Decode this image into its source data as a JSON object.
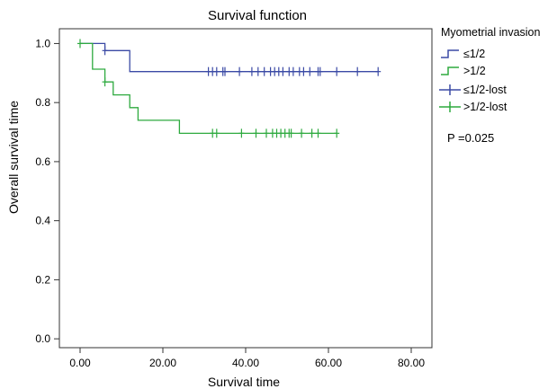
{
  "chart_data": {
    "type": "line",
    "title": "Survival function",
    "xlabel": "Survival time",
    "ylabel": "Overall survival time",
    "xlim": [
      -5,
      85
    ],
    "ylim": [
      -0.03,
      1.05
    ],
    "xticks": [
      0,
      20,
      40,
      60,
      80
    ],
    "xtick_labels": [
      "0.00",
      "20.00",
      "40.00",
      "60.00",
      "80.00"
    ],
    "yticks": [
      0.0,
      0.2,
      0.4,
      0.6,
      0.8,
      1.0
    ],
    "ytick_labels": [
      "0.0",
      "0.2",
      "0.4",
      "0.6",
      "0.8",
      "1.0"
    ],
    "grid": false,
    "legend_placement": "right",
    "legend_title": "Myometrial invasion",
    "annotation": "P =0.025",
    "series": [
      {
        "name": "≤1/2",
        "color": "#3b4aa5",
        "steps": [
          [
            0,
            1.0
          ],
          [
            6,
            1.0
          ],
          [
            6,
            0.976
          ],
          [
            12,
            0.976
          ],
          [
            12,
            0.905
          ],
          [
            72,
            0.905
          ]
        ]
      },
      {
        "name": ">1/2",
        "color": "#2eaa3f",
        "steps": [
          [
            0,
            1.0
          ],
          [
            3,
            1.0
          ],
          [
            3,
            0.913
          ],
          [
            6,
            0.913
          ],
          [
            6,
            0.87
          ],
          [
            8,
            0.87
          ],
          [
            8,
            0.826
          ],
          [
            12,
            0.826
          ],
          [
            12,
            0.783
          ],
          [
            14,
            0.783
          ],
          [
            14,
            0.74
          ],
          [
            24,
            0.74
          ],
          [
            24,
            0.696
          ],
          [
            62,
            0.696
          ]
        ]
      },
      {
        "name": "≤1/2-lost",
        "color": "#3b4aa5",
        "censored_x": [
          6,
          31,
          32,
          33,
          34.5,
          35,
          38.5,
          41.5,
          43,
          44.5,
          46,
          47,
          48,
          49,
          50.5,
          51.5,
          53,
          54,
          55.5,
          57.5,
          58,
          62,
          67,
          72
        ]
      },
      {
        "name": ">1/2-lost",
        "color": "#2eaa3f",
        "censored_x": [
          0,
          6,
          32,
          33,
          39,
          42.5,
          45,
          46.5,
          47.5,
          48.5,
          49.5,
          50.5,
          51,
          53.5,
          56,
          57.5,
          62
        ]
      }
    ]
  }
}
